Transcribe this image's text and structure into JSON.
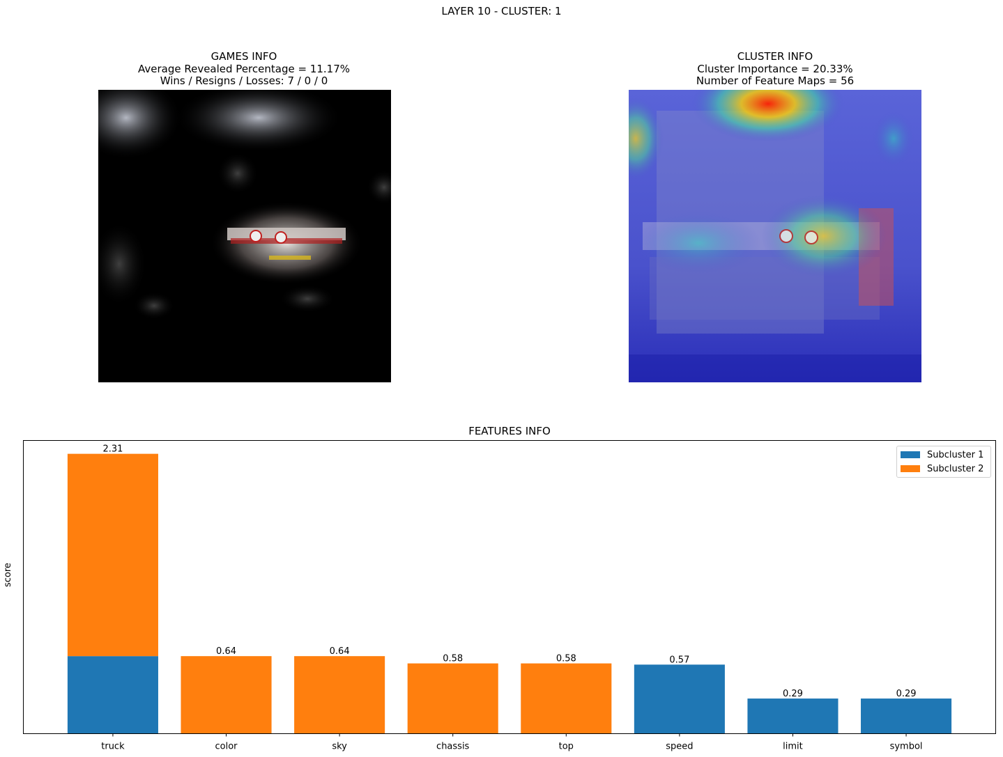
{
  "suptitle": "LAYER 10 - CLUSTER: 1",
  "games_info": {
    "title": "GAMES INFO",
    "line1": "Average Revealed Percentage = 11.17%",
    "line2": "Wins / Resigns / Losses: 7 / 0 / 0"
  },
  "cluster_info": {
    "title": "CLUSTER INFO",
    "line1": "Cluster Importance = 20.33%",
    "line2": "Number of Feature Maps = 56"
  },
  "chart_data": {
    "type": "bar",
    "stacked": true,
    "title": "FEATURES INFO",
    "xlabel": "",
    "ylabel": "score",
    "ylim": [
      0,
      2.42
    ],
    "show_yticks": false,
    "grid": false,
    "legend_position": "top-right",
    "categories": [
      "truck",
      "color",
      "sky",
      "chassis",
      "top",
      "speed",
      "limit",
      "symbol"
    ],
    "totals_labels": [
      "2.31",
      "0.64",
      "0.64",
      "0.58",
      "0.58",
      "0.57",
      "0.29",
      "0.29"
    ],
    "series": [
      {
        "name": "Subcluster 1",
        "color": "#1f77b4",
        "values": [
          0.64,
          0,
          0,
          0,
          0,
          0.57,
          0.29,
          0.29
        ]
      },
      {
        "name": "Subcluster 2",
        "color": "#ff7f0e",
        "values": [
          1.67,
          0.64,
          0.64,
          0.58,
          0.58,
          0,
          0,
          0
        ]
      }
    ]
  }
}
